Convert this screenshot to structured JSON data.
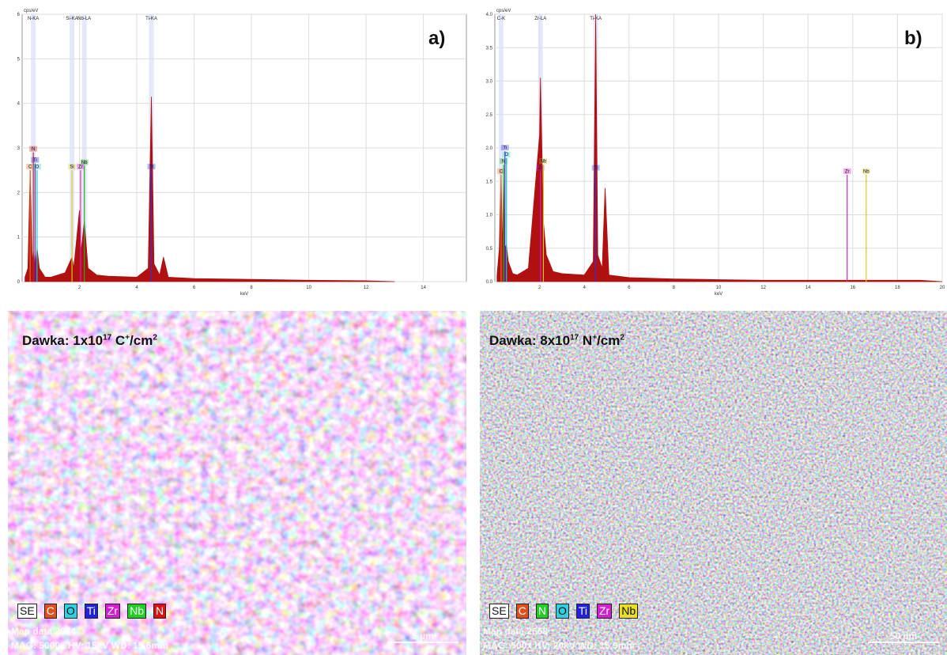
{
  "chart_data": [
    {
      "type": "spectrum",
      "title": "a)",
      "y_label": "cps/eV",
      "x_label": "keV",
      "color": "#b01010",
      "grid": true,
      "xlim": [
        0,
        15.5
      ],
      "xticks": [
        2,
        4,
        6,
        8,
        10,
        12,
        14
      ],
      "ylim": [
        0,
        6
      ],
      "yticks": [
        0,
        1,
        2,
        3,
        4,
        5,
        6
      ],
      "x": [
        0.1,
        0.2,
        0.28,
        0.35,
        0.39,
        0.45,
        0.52,
        0.6,
        0.8,
        1.0,
        1.5,
        1.74,
        1.8,
        2.0,
        2.04,
        2.17,
        2.3,
        2.6,
        3.0,
        4.0,
        4.4,
        4.51,
        4.6,
        4.8,
        4.93,
        5.1,
        6,
        8,
        10,
        12,
        13
      ],
      "values": [
        0.1,
        0.3,
        2.5,
        0.4,
        0.7,
        0.3,
        0.75,
        0.3,
        0.1,
        0.1,
        0.2,
        0.55,
        0.3,
        1.6,
        0.6,
        1.35,
        0.3,
        0.15,
        0.12,
        0.1,
        0.3,
        4.15,
        0.4,
        0.15,
        0.55,
        0.1,
        0.07,
        0.05,
        0.03,
        0.02,
        0
      ],
      "peaks": [
        {
          "name": "C",
          "x": 0.28,
          "value": 2.5,
          "color": "#e07020"
        },
        {
          "name": "N",
          "x": 0.39,
          "value": 2.9,
          "color": "#d02020"
        },
        {
          "name": "Ti",
          "x": 0.45,
          "value": 2.65,
          "color": "#3030e0"
        },
        {
          "name": "O",
          "x": 0.52,
          "value": 2.5,
          "color": "#20c0d0"
        },
        {
          "name": "Si",
          "x": 1.74,
          "value": 2.5,
          "color": "#d8c820"
        },
        {
          "name": "Zr",
          "x": 2.04,
          "value": 2.5,
          "color": "#d020d0"
        },
        {
          "name": "Nb",
          "x": 2.17,
          "value": 2.6,
          "color": "#20b020"
        },
        {
          "name": "Ti",
          "x": 4.51,
          "value": 2.5,
          "color": "#3030e0"
        }
      ],
      "lines": [
        {
          "label": "N-KA",
          "x": 0.39
        },
        {
          "label": "Si-KA",
          "x": 1.74
        },
        {
          "label": "Nb-LA",
          "x": 2.17
        },
        {
          "label": "Ti-KA",
          "x": 4.51
        }
      ]
    },
    {
      "type": "spectrum",
      "title": "b)",
      "y_label": "cps/eV",
      "x_label": "keV",
      "color": "#b01010",
      "grid": true,
      "xlim": [
        0,
        20
      ],
      "xticks": [
        2,
        4,
        6,
        8,
        10,
        12,
        14,
        16,
        18,
        20
      ],
      "ylim": [
        0,
        4
      ],
      "yticks": [
        {
          "value": 0,
          "label": "0.0"
        },
        0.5,
        {
          "value": 1,
          "label": "1.0"
        },
        1.5,
        {
          "value": 2,
          "label": "2.0"
        },
        2.5,
        {
          "value": 3,
          "label": "3.0"
        },
        3.5,
        {
          "value": 4,
          "label": "4.0"
        }
      ],
      "x": [
        0.1,
        0.2,
        0.28,
        0.35,
        0.39,
        0.45,
        0.52,
        0.6,
        0.8,
        1.0,
        1.5,
        2.0,
        2.04,
        2.17,
        2.3,
        2.6,
        3.0,
        4.0,
        4.4,
        4.51,
        4.6,
        4.8,
        4.93,
        5.1,
        6,
        8,
        10,
        12,
        14,
        15.75,
        16,
        16.6,
        17,
        17.7,
        18,
        18.6,
        19,
        20
      ],
      "values": [
        0.1,
        0.5,
        1.6,
        0.4,
        1.6,
        0.5,
        0.55,
        0.3,
        0.12,
        0.1,
        0.2,
        2.2,
        3.05,
        0.9,
        0.4,
        0.15,
        0.12,
        0.1,
        0.3,
        4.0,
        0.4,
        0.2,
        1.4,
        0.1,
        0.06,
        0.04,
        0.03,
        0.02,
        0.02,
        0.02,
        0.02,
        0.02,
        0.02,
        0.02,
        0.02,
        0.02,
        0.02,
        0
      ],
      "peaks": [
        {
          "name": "C",
          "x": 0.28,
          "value": 1.6,
          "color": "#e07020"
        },
        {
          "name": "N",
          "x": 0.39,
          "value": 1.75,
          "color": "#20b020"
        },
        {
          "name": "Ti",
          "x": 0.45,
          "value": 1.95,
          "color": "#3030e0"
        },
        {
          "name": "O",
          "x": 0.52,
          "value": 1.85,
          "color": "#20c0d0"
        },
        {
          "name": "Zr",
          "x": 2.04,
          "value": 1.65,
          "color": "#d020d0"
        },
        {
          "name": "Nb",
          "x": 2.17,
          "value": 1.75,
          "color": "#d8c820"
        },
        {
          "name": "Ti",
          "x": 4.51,
          "value": 1.65,
          "color": "#3030e0"
        },
        {
          "name": "Zr",
          "x": 15.75,
          "value": 1.6,
          "color": "#d020d0"
        },
        {
          "name": "Nb",
          "x": 16.6,
          "value": 1.6,
          "color": "#d8c820"
        }
      ],
      "lines": [
        {
          "label": "C-K",
          "x": 0.28
        },
        {
          "label": "Zr-LA",
          "x": 2.04
        },
        {
          "label": "Ti-KA",
          "x": 4.51
        }
      ]
    }
  ],
  "maps": [
    {
      "dose": {
        "prefix": "Dawka: 1x10",
        "exp": "17",
        "ion": " C",
        "charge": "+",
        "unit": "/cm",
        "unit_exp": "2"
      },
      "legend": [
        {
          "label": "SE",
          "color": "#ffffff"
        },
        {
          "label": "C",
          "color": "#e0501a"
        },
        {
          "label": "O",
          "color": "#30d0e0"
        },
        {
          "label": "Ti",
          "color": "#2020e0"
        },
        {
          "label": "Zr",
          "color": "#d020d0"
        },
        {
          "label": "Nb",
          "color": "#20d020"
        },
        {
          "label": "N",
          "color": "#e01010"
        }
      ],
      "map_data": "Map data 2634",
      "info": "MAG: 5000x  HV: 15kV  WD: 15.6mm",
      "scale": "5 µm"
    },
    {
      "dose": {
        "prefix": "Dawka: 8x10",
        "exp": "17",
        "ion": " N",
        "charge": "+",
        "unit": "/cm",
        "unit_exp": "2"
      },
      "legend": [
        {
          "label": "SE",
          "color": "#ffffff"
        },
        {
          "label": "C",
          "color": "#e0501a"
        },
        {
          "label": "N",
          "color": "#20d020"
        },
        {
          "label": "O",
          "color": "#30d0e0"
        },
        {
          "label": "Ti",
          "color": "#2020e0"
        },
        {
          "label": "Zr",
          "color": "#d020d0"
        },
        {
          "label": "Nb",
          "color": "#e8e020"
        }
      ],
      "map_data": "Map data 2668",
      "info": "MAG: 500x  HV: 20kV  WD: 15.9mm",
      "scale": "50 µm"
    }
  ]
}
